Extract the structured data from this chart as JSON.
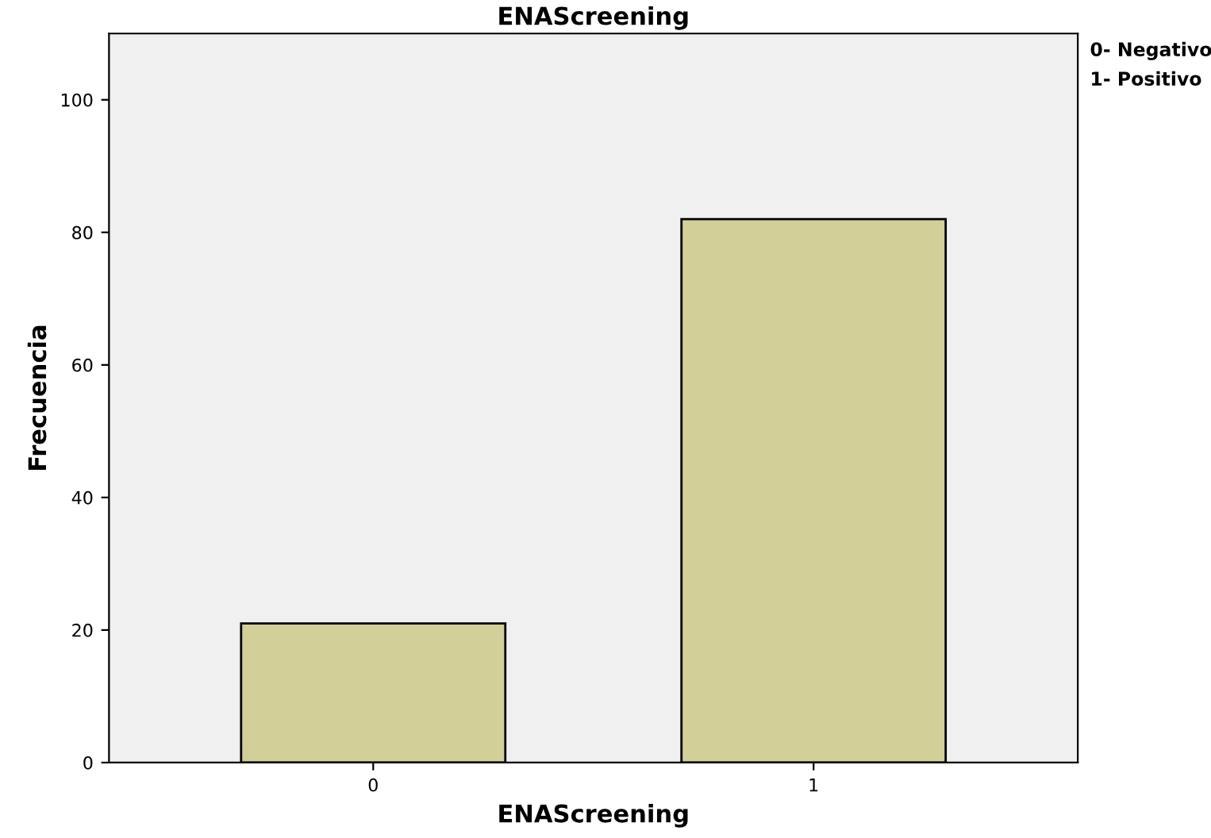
{
  "chart_data": {
    "type": "bar",
    "title": "ENAScreening",
    "xlabel": "ENAScreening",
    "ylabel": "Frecuencia",
    "categories": [
      "0",
      "1"
    ],
    "values": [
      21,
      82
    ],
    "color": "#d3cf98",
    "ylim": [
      0,
      110
    ],
    "yticks": [
      0,
      20,
      40,
      60,
      80,
      100
    ],
    "grid": false,
    "annotations": [
      "0- Negativo",
      "1- Positivo"
    ]
  }
}
